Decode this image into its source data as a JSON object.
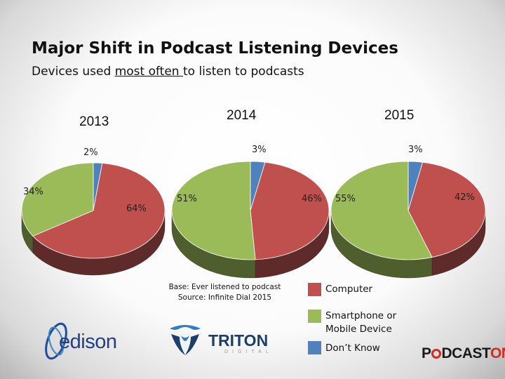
{
  "slide": {
    "title": "Major Shift in Podcast Listening Devices",
    "subtitle_pre": "Devices used ",
    "subtitle_underlined": "most often ",
    "subtitle_post": "to listen to podcasts"
  },
  "chart_data": {
    "type": "pie",
    "title": "Devices used most often to listen to podcasts",
    "categories": [
      "Computer",
      "Smartphone or Mobile Device",
      "Don’t Know"
    ],
    "colors": [
      "#c0504d",
      "#9bbb59",
      "#4f81bd"
    ],
    "pies": [
      {
        "year": "2013",
        "values": [
          64,
          34,
          2
        ],
        "labels": [
          "64%",
          "34%",
          "2%"
        ]
      },
      {
        "year": "2014",
        "values": [
          46,
          51,
          3
        ],
        "labels": [
          "46%",
          "51%",
          "3%"
        ]
      },
      {
        "year": "2015",
        "values": [
          42,
          55,
          3
        ],
        "labels": [
          "42%",
          "55%",
          "3%"
        ]
      }
    ]
  },
  "footnote": {
    "base": "Base: Ever listened to podcast",
    "source": "Source: Infinite Dial 2015"
  },
  "legend": {
    "computer": "Computer",
    "smartphone_line1": "Smartphone or",
    "smartphone_line2": "Mobile Device",
    "dont_know": "Don’t Know"
  },
  "logos": {
    "edison": "edison",
    "triton_main": "TRITON",
    "triton_sub": "DIGITAL",
    "podcastone_a": "P",
    "podcastone_b": "DCAST",
    "podcastone_c": "ONE"
  }
}
